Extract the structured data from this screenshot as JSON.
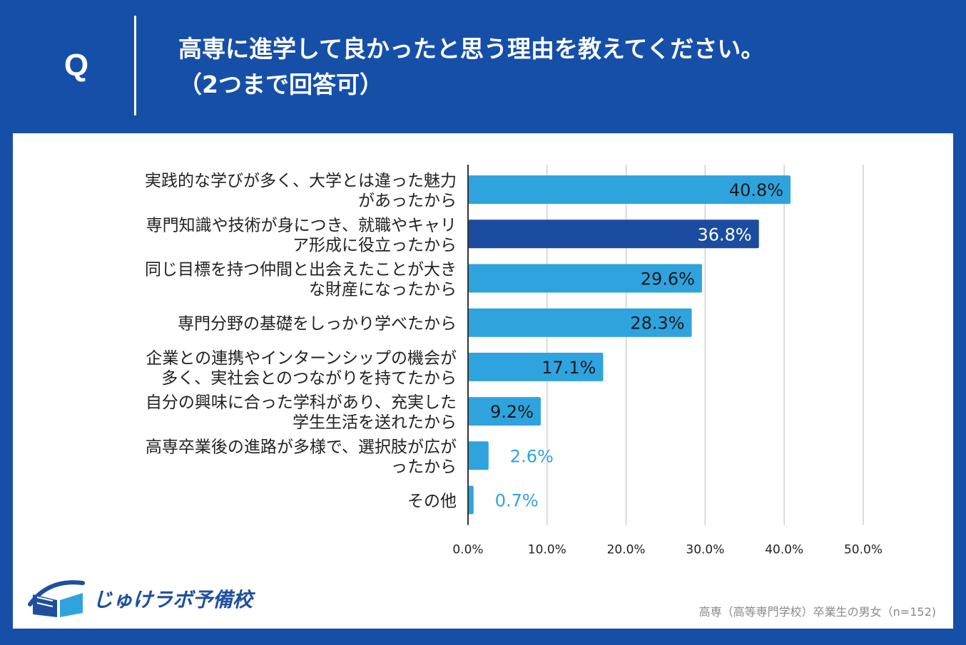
{
  "header": {
    "q_label": "Q",
    "title_line1": "高専に進学して良かったと思う理由を教えてください。",
    "title_line2": "（2つまで回答可）"
  },
  "chart_data": {
    "type": "bar",
    "orientation": "horizontal",
    "categories": [
      [
        "実践的な学びが多く、大学とは違った魅力",
        "があったから"
      ],
      [
        "専門知識や技術が身につき、就職やキャリ",
        "ア形成に役立ったから"
      ],
      [
        "同じ目標を持つ仲間と出会えたことが大き",
        "な財産になったから"
      ],
      [
        "専門分野の基礎をしっかり学べたから"
      ],
      [
        "企業との連携やインターンシップの機会が",
        "多く、実社会とのつながりを持てたから"
      ],
      [
        "自分の興味に合った学科があり、充実した",
        "学生生活を送れたから"
      ],
      [
        "高専卒業後の進路が多様で、選択肢が広が",
        "ったから"
      ],
      [
        "その他"
      ]
    ],
    "values": [
      40.8,
      36.8,
      29.6,
      28.3,
      17.1,
      9.2,
      2.6,
      0.7
    ],
    "value_labels": [
      "40.8%",
      "36.8%",
      "29.6%",
      "28.3%",
      "17.1%",
      "9.2%",
      "2.6%",
      "0.7%"
    ],
    "highlight_index": 1,
    "xlim": [
      0,
      50
    ],
    "xticks": [
      "0.0%",
      "10.0%",
      "20.0%",
      "30.0%",
      "40.0%",
      "50.0%"
    ],
    "grid": true,
    "colors": {
      "bar": "#2fa3de",
      "highlight": "#1b4c9f",
      "label_dark": "#1a1a1a",
      "label_light": "#ffffff",
      "label_outside": "#2fa3de",
      "grid": "#cfcfcf",
      "axis": "#333333"
    }
  },
  "logo": {
    "text": "じゅけラボ予備校",
    "icon": "open-book-icon"
  },
  "footnote": "高専（高等専門学校）卒業生の男女（n=152)"
}
